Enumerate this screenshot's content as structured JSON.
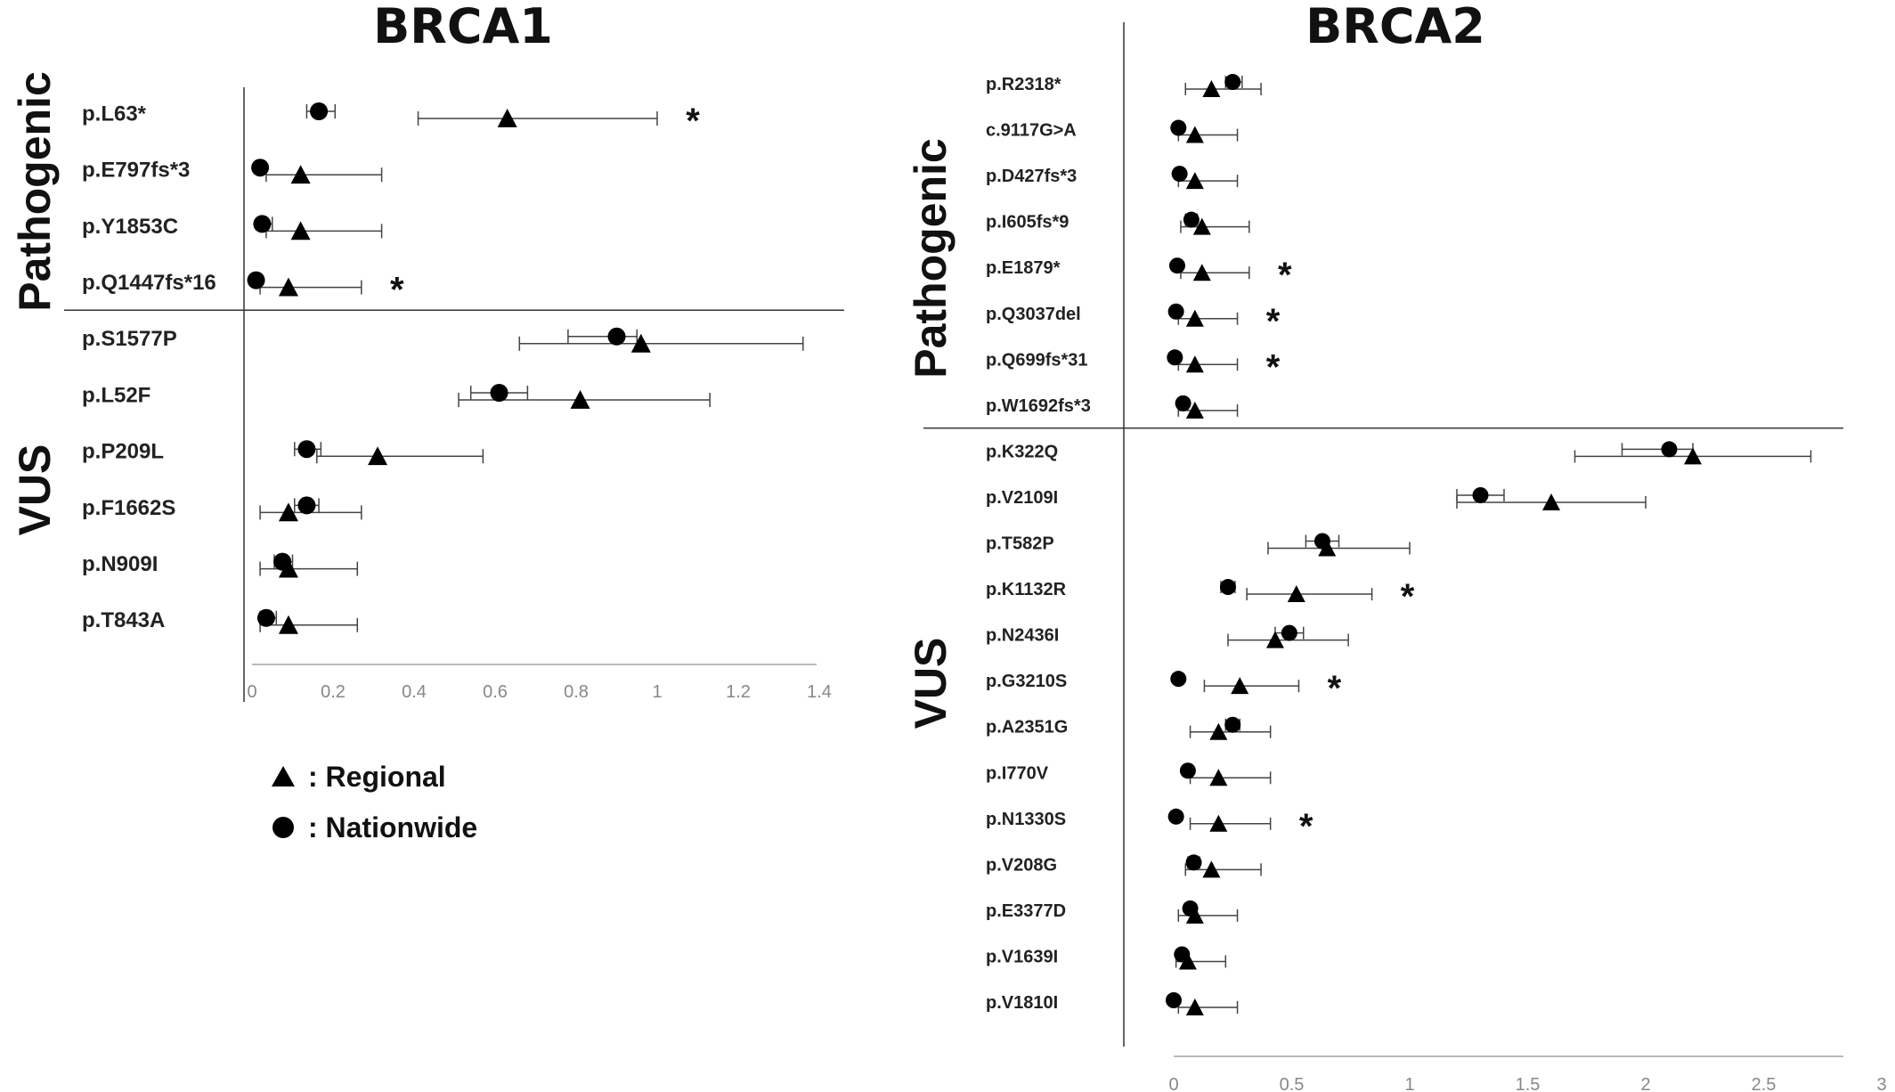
{
  "legend": [
    {
      "symbol": "triangle",
      "label": ": Regional"
    },
    {
      "symbol": "circle",
      "label": ": Nationwide"
    }
  ],
  "colors": {
    "marker": "#000000",
    "error_bar": "#444444",
    "axis": "#333333",
    "gridline": "#bbbbbb",
    "tick_label": "#888888"
  },
  "chart_data": [
    {
      "type": "scatter",
      "title": "BRCA1",
      "xlabel": "",
      "ylabel": "",
      "xlim": [
        0,
        1.4
      ],
      "xticks": [
        "0",
        "0.2",
        "0.4",
        "0.6",
        "0.8",
        "1",
        "1.2",
        "1.4"
      ],
      "groups": [
        {
          "label": "Pathogenic",
          "categories": [
            "p.L63*",
            "p.E797fs*3",
            "p.Y1853C",
            "p.Q1447fs*16"
          ]
        },
        {
          "label": "VUS",
          "categories": [
            "p.S1577P",
            "p.L52F",
            "p.P209L",
            "p.F1662S",
            "p.N909I",
            "p.T843A"
          ]
        }
      ],
      "rows": [
        {
          "variant": "p.L63*",
          "regional": 0.63,
          "regional_ci": [
            0.41,
            1.0
          ],
          "nationwide": 0.165,
          "nationwide_ci": [
            0.135,
            0.205
          ],
          "significant": true
        },
        {
          "variant": "p.E797fs*3",
          "regional": 0.12,
          "regional_ci": [
            0.035,
            0.32
          ],
          "nationwide": 0.02,
          "nationwide_ci": null,
          "significant": false
        },
        {
          "variant": "p.Y1853C",
          "regional": 0.12,
          "regional_ci": [
            0.035,
            0.32
          ],
          "nationwide": 0.025,
          "nationwide_ci": [
            0.015,
            0.05
          ],
          "significant": false
        },
        {
          "variant": "p.Q1447fs*16",
          "regional": 0.09,
          "regional_ci": [
            0.02,
            0.27
          ],
          "nationwide": 0.01,
          "nationwide_ci": null,
          "significant": true
        },
        {
          "variant": "p.S1577P",
          "regional": 0.96,
          "regional_ci": [
            0.66,
            1.36
          ],
          "nationwide": 0.9,
          "nationwide_ci": [
            0.78,
            0.95
          ],
          "significant": false
        },
        {
          "variant": "p.L52F",
          "regional": 0.81,
          "regional_ci": [
            0.51,
            1.13
          ],
          "nationwide": 0.61,
          "nationwide_ci": [
            0.54,
            0.68
          ],
          "significant": false
        },
        {
          "variant": "p.P209L",
          "regional": 0.31,
          "regional_ci": [
            0.16,
            0.57
          ],
          "nationwide": 0.135,
          "nationwide_ci": [
            0.105,
            0.17
          ],
          "significant": false
        },
        {
          "variant": "p.F1662S",
          "regional": 0.09,
          "regional_ci": [
            0.02,
            0.27
          ],
          "nationwide": 0.135,
          "nationwide_ci": [
            0.105,
            0.165
          ],
          "significant": false
        },
        {
          "variant": "p.N909I",
          "regional": 0.09,
          "regional_ci": [
            0.02,
            0.26
          ],
          "nationwide": 0.075,
          "nationwide_ci": [
            0.055,
            0.1
          ],
          "significant": false
        },
        {
          "variant": "p.T843A",
          "regional": 0.09,
          "regional_ci": [
            0.02,
            0.26
          ],
          "nationwide": 0.035,
          "nationwide_ci": [
            0.02,
            0.06
          ],
          "significant": false
        }
      ],
      "significance_marker": "*"
    },
    {
      "type": "scatter",
      "title": "BRCA2",
      "xlabel": "",
      "ylabel": "",
      "xlim": [
        0,
        3
      ],
      "xticks": [
        "0",
        "0.5",
        "1",
        "1.5",
        "2",
        "2.5",
        "3"
      ],
      "groups": [
        {
          "label": "Pathogenic",
          "categories": [
            "p.R2318*",
            "c.9117G>A",
            "p.D427fs*3",
            "p.I605fs*9",
            "p.E1879*",
            "p.Q3037del",
            "p.Q699fs*31",
            "p.W1692fs*3"
          ]
        },
        {
          "label": "VUS",
          "categories": [
            "p.K322Q",
            "p.V2109I",
            "p.T582P",
            "p.K1132R",
            "p.N2436I",
            "p.G3210S",
            "p.A2351G",
            "p.I770V",
            "p.N1330S",
            "p.V208G",
            "p.E3377D",
            "p.V1639I",
            "p.V1810I"
          ]
        }
      ],
      "rows": [
        {
          "variant": "p.R2318*",
          "regional": 0.16,
          "regional_ci": [
            0.05,
            0.37
          ],
          "nationwide": 0.25,
          "nationwide_ci": [
            0.22,
            0.29
          ],
          "significant": false
        },
        {
          "variant": "c.9117G>A",
          "regional": 0.09,
          "regional_ci": [
            0.02,
            0.27
          ],
          "nationwide": 0.02,
          "nationwide_ci": null,
          "significant": false
        },
        {
          "variant": "p.D427fs*3",
          "regional": 0.09,
          "regional_ci": [
            0.02,
            0.27
          ],
          "nationwide": 0.025,
          "nationwide_ci": null,
          "significant": false
        },
        {
          "variant": "p.I605fs*9",
          "regional": 0.12,
          "regional_ci": [
            0.03,
            0.32
          ],
          "nationwide": 0.075,
          "nationwide_ci": [
            0.05,
            0.1
          ],
          "significant": false
        },
        {
          "variant": "p.E1879*",
          "regional": 0.12,
          "regional_ci": [
            0.03,
            0.32
          ],
          "nationwide": 0.015,
          "nationwide_ci": null,
          "significant": true
        },
        {
          "variant": "p.Q3037del",
          "regional": 0.09,
          "regional_ci": [
            0.02,
            0.27
          ],
          "nationwide": 0.01,
          "nationwide_ci": null,
          "significant": true
        },
        {
          "variant": "p.Q699fs*31",
          "regional": 0.09,
          "regional_ci": [
            0.02,
            0.27
          ],
          "nationwide": 0.005,
          "nationwide_ci": null,
          "significant": true
        },
        {
          "variant": "p.W1692fs*3",
          "regional": 0.09,
          "regional_ci": [
            0.02,
            0.27
          ],
          "nationwide": 0.04,
          "nationwide_ci": [
            0.02,
            0.06
          ],
          "significant": false
        },
        {
          "variant": "p.K322Q",
          "regional": 2.2,
          "regional_ci": [
            1.7,
            2.7
          ],
          "nationwide": 2.1,
          "nationwide_ci": [
            1.9,
            2.2
          ],
          "significant": false
        },
        {
          "variant": "p.V2109I",
          "regional": 1.6,
          "regional_ci": [
            1.2,
            2.0
          ],
          "nationwide": 1.3,
          "nationwide_ci": [
            1.2,
            1.4
          ],
          "significant": false
        },
        {
          "variant": "p.T582P",
          "regional": 0.65,
          "regional_ci": [
            0.4,
            1.0
          ],
          "nationwide": 0.63,
          "nationwide_ci": [
            0.56,
            0.7
          ],
          "significant": false
        },
        {
          "variant": "p.K1132R",
          "regional": 0.52,
          "regional_ci": [
            0.31,
            0.84
          ],
          "nationwide": 0.23,
          "nationwide_ci": [
            0.2,
            0.26
          ],
          "significant": true
        },
        {
          "variant": "p.N2436I",
          "regional": 0.43,
          "regional_ci": [
            0.23,
            0.74
          ],
          "nationwide": 0.49,
          "nationwide_ci": [
            0.43,
            0.55
          ],
          "significant": false
        },
        {
          "variant": "p.G3210S",
          "regional": 0.28,
          "regional_ci": [
            0.13,
            0.53
          ],
          "nationwide": 0.02,
          "nationwide_ci": null,
          "significant": true
        },
        {
          "variant": "p.A2351G",
          "regional": 0.19,
          "regional_ci": [
            0.07,
            0.41
          ],
          "nationwide": 0.25,
          "nationwide_ci": [
            0.22,
            0.28
          ],
          "significant": false
        },
        {
          "variant": "p.I770V",
          "regional": 0.19,
          "regional_ci": [
            0.07,
            0.41
          ],
          "nationwide": 0.06,
          "nationwide_ci": [
            0.04,
            0.08
          ],
          "significant": false
        },
        {
          "variant": "p.N1330S",
          "regional": 0.19,
          "regional_ci": [
            0.07,
            0.41
          ],
          "nationwide": 0.01,
          "nationwide_ci": null,
          "significant": true
        },
        {
          "variant": "p.V208G",
          "regional": 0.16,
          "regional_ci": [
            0.05,
            0.37
          ],
          "nationwide": 0.085,
          "nationwide_ci": [
            0.06,
            0.11
          ],
          "significant": false
        },
        {
          "variant": "p.E3377D",
          "regional": 0.09,
          "regional_ci": [
            0.02,
            0.27
          ],
          "nationwide": 0.07,
          "nationwide_ci": [
            0.05,
            0.09
          ],
          "significant": false
        },
        {
          "variant": "p.V1639I",
          "regional": 0.06,
          "regional_ci": [
            0.01,
            0.22
          ],
          "nationwide": 0.035,
          "nationwide_ci": [
            0.02,
            0.05
          ],
          "significant": false
        },
        {
          "variant": "p.V1810I",
          "regional": 0.09,
          "regional_ci": [
            0.02,
            0.27
          ],
          "nationwide": 0.0,
          "nationwide_ci": null,
          "significant": false
        }
      ],
      "significance_marker": "*"
    }
  ]
}
